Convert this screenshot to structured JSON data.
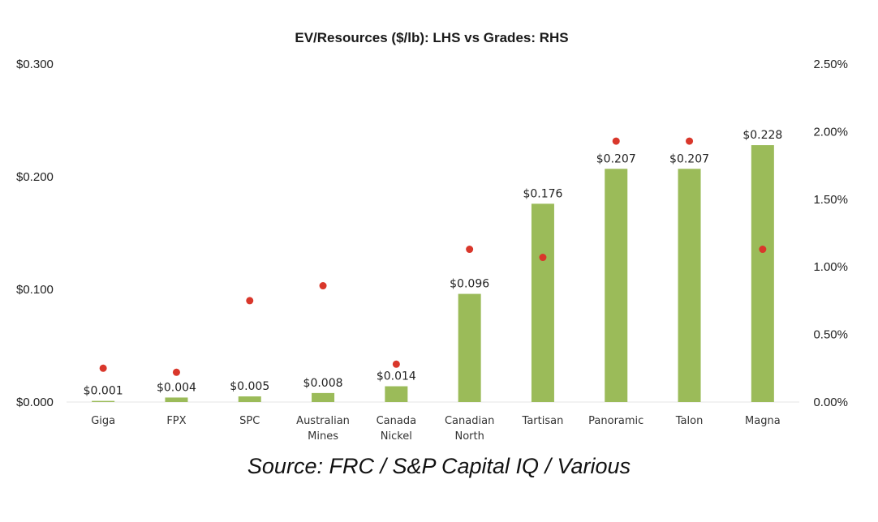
{
  "chart_data": {
    "type": "bar",
    "title": "EV/Resources ($/lb): LHS vs Grades: RHS",
    "categories": [
      [
        "Giga"
      ],
      [
        "FPX"
      ],
      [
        "SPC"
      ],
      [
        "Australian",
        "Mines"
      ],
      [
        "Canada",
        "Nickel"
      ],
      [
        "Canadian",
        "North"
      ],
      [
        "Tartisan"
      ],
      [
        "Panoramic"
      ],
      [
        "Talon"
      ],
      [
        "Magna"
      ]
    ],
    "series": [
      {
        "axis": "left",
        "mark": "bar",
        "color": "#9bbb59",
        "values": [
          0.001,
          0.004,
          0.005,
          0.008,
          0.014,
          0.096,
          0.176,
          0.207,
          0.207,
          0.228
        ],
        "data_labels": [
          "$0.001",
          "$0.004",
          "$0.005",
          "$0.008",
          "$0.014",
          "$0.096",
          "$0.176",
          "$0.207",
          "$0.207",
          "$0.228"
        ]
      },
      {
        "axis": "right",
        "mark": "dot",
        "color": "#d9372b",
        "values": [
          0.25,
          0.22,
          0.75,
          0.86,
          0.28,
          1.13,
          1.07,
          1.93,
          1.93,
          1.13
        ]
      }
    ],
    "y_left": {
      "min": 0,
      "max": 0.3,
      "ticks": [
        0,
        0.1,
        0.2,
        0.3
      ],
      "tick_labels": [
        "$0.000",
        "$0.100",
        "$0.200",
        "$0.300"
      ]
    },
    "y_right": {
      "min": 0,
      "max": 2.5,
      "ticks": [
        0,
        0.5,
        1.0,
        1.5,
        2.0,
        2.5
      ],
      "tick_labels": [
        "0.00%",
        "0.50%",
        "1.00%",
        "1.50%",
        "2.00%",
        "2.50%"
      ]
    },
    "grid": false,
    "legend": "none"
  },
  "source_note": "Source: FRC / S&P Capital IQ / Various"
}
